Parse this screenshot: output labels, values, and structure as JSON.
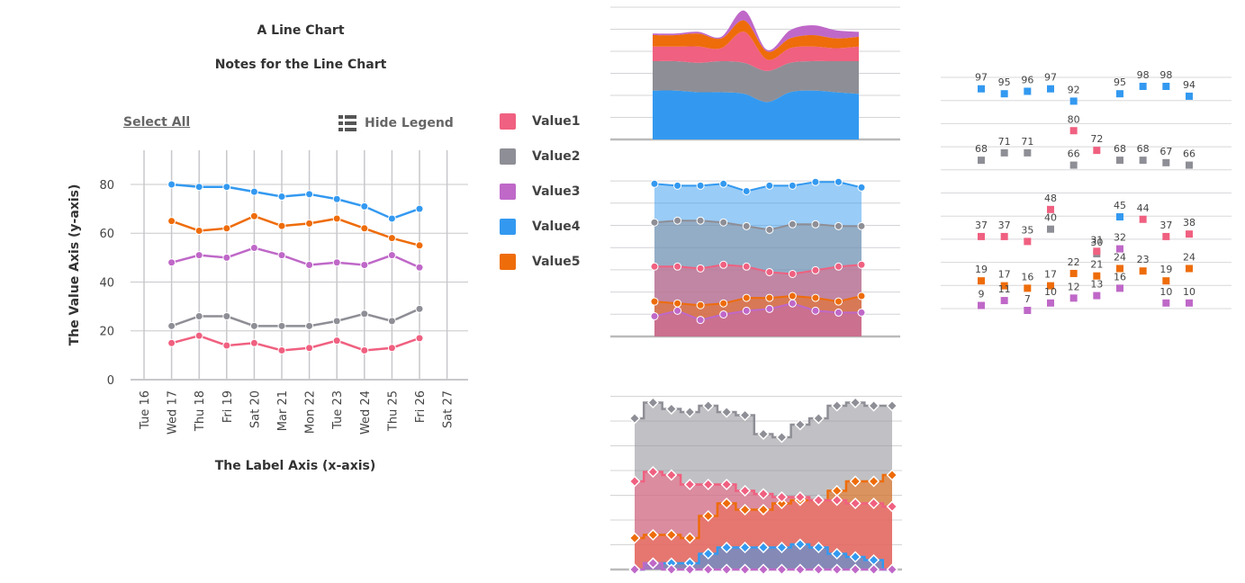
{
  "colors": {
    "Value1": "#f06080",
    "Value2": "#8e8e96",
    "Value3": "#bf68c8",
    "Value4": "#3399f0",
    "Value5": "#ee6c0a"
  },
  "controls": {
    "select_all": "Select All",
    "hide_legend": "Hide Legend",
    "hide_legend_icon": "list-icon"
  },
  "legend": [
    "Value1",
    "Value2",
    "Value3",
    "Value4",
    "Value5"
  ],
  "chart_data": [
    {
      "type": "line",
      "title": "A Line Chart",
      "subtitle": "Notes for the Line Chart",
      "xlabel": "The Label Axis (x-axis)",
      "ylabel": "The Value Axis (y-axis)",
      "categories": [
        "Tue 16",
        "Wed 17",
        "Thu 18",
        "Fri 19",
        "Sat 20",
        "Mar 21",
        "Mon 22",
        "Tue 23",
        "Wed 24",
        "Thu 25",
        "Fri 26",
        "Sat 27"
      ],
      "yticks": [
        0,
        20,
        40,
        60,
        80
      ],
      "ylim": [
        0,
        94
      ],
      "grid": true,
      "legend_position": "right",
      "series": [
        {
          "name": "Value1",
          "values": [
            null,
            15,
            18,
            14,
            15,
            12,
            13,
            16,
            12,
            13,
            17,
            null
          ]
        },
        {
          "name": "Value2",
          "values": [
            null,
            22,
            26,
            26,
            22,
            22,
            22,
            24,
            27,
            24,
            29,
            null
          ]
        },
        {
          "name": "Value3",
          "values": [
            null,
            48,
            51,
            50,
            54,
            51,
            47,
            48,
            47,
            51,
            46,
            null
          ]
        },
        {
          "name": "Value4",
          "values": [
            null,
            80,
            79,
            79,
            77,
            75,
            76,
            74,
            71,
            66,
            70,
            null
          ]
        },
        {
          "name": "Value5",
          "values": [
            null,
            65,
            61,
            62,
            67,
            63,
            64,
            66,
            62,
            58,
            55,
            null
          ]
        }
      ]
    },
    {
      "type": "area",
      "stacked": true,
      "smooth": true,
      "grid": true,
      "series": [
        {
          "name": "Value4",
          "values": [
            30,
            30,
            29,
            29,
            28,
            23,
            29,
            30,
            29,
            28
          ]
        },
        {
          "name": "Value2",
          "values": [
            18,
            18,
            18,
            19,
            19,
            19,
            18,
            18,
            19,
            20
          ]
        },
        {
          "name": "Value1",
          "values": [
            9,
            9,
            10,
            8,
            19,
            7,
            9,
            9,
            8,
            9
          ]
        },
        {
          "name": "Value5",
          "values": [
            7,
            7,
            8,
            6,
            7,
            5,
            6,
            7,
            6,
            6
          ]
        },
        {
          "name": "Value3",
          "values": [
            1,
            1,
            1,
            1,
            6,
            1,
            5,
            6,
            5,
            3
          ]
        }
      ]
    },
    {
      "type": "area",
      "overlapping": true,
      "grid": true,
      "series": [
        {
          "name": "Value4",
          "values": [
            83,
            82,
            82,
            83,
            79,
            82,
            82,
            84,
            84,
            81
          ]
        },
        {
          "name": "Value2",
          "values": [
            62,
            63,
            63,
            62,
            60,
            58,
            61,
            61,
            60,
            60
          ]
        },
        {
          "name": "Value1",
          "values": [
            38,
            38,
            37,
            39,
            38,
            35,
            34,
            36,
            38,
            39
          ]
        },
        {
          "name": "Value5",
          "values": [
            19,
            18,
            17,
            18,
            21,
            21,
            22,
            21,
            19,
            22
          ]
        },
        {
          "name": "Value3",
          "values": [
            11,
            14,
            9,
            12,
            14,
            15,
            18,
            14,
            13,
            13
          ]
        }
      ]
    },
    {
      "type": "area",
      "step": true,
      "overlapping": true,
      "markers": "diamond",
      "grid": true,
      "series": [
        {
          "name": "Value2",
          "values": [
            48,
            53,
            51,
            50,
            52,
            50,
            49,
            43,
            42,
            46,
            48,
            52,
            53,
            52,
            52
          ]
        },
        {
          "name": "Value5",
          "values": [
            10,
            11,
            11,
            10,
            17,
            21,
            19,
            19,
            21,
            22,
            22,
            25,
            28,
            28,
            30
          ]
        },
        {
          "name": "Value1",
          "values": [
            28,
            31,
            30,
            27,
            27,
            27,
            25,
            24,
            23,
            23,
            22,
            22,
            21,
            21,
            20
          ]
        },
        {
          "name": "Value4",
          "values": [
            0,
            2,
            2,
            2,
            5,
            7,
            7,
            7,
            7,
            8,
            7,
            5,
            4,
            3,
            0
          ]
        },
        {
          "name": "Value3",
          "values": [
            0,
            2,
            0,
            0,
            0,
            0,
            0,
            0,
            0,
            0,
            0,
            0,
            0,
            0,
            0
          ]
        }
      ]
    },
    {
      "type": "scatter",
      "labels": true,
      "grid": true,
      "series": [
        {
          "name": "Value4",
          "values": [
            97,
            95,
            96,
            97,
            92,
            null,
            95,
            98,
            98,
            94
          ]
        },
        {
          "name": "Value1",
          "values": [
            null,
            null,
            null,
            null,
            80,
            72,
            null,
            null,
            null,
            null
          ]
        },
        {
          "name": "Value2",
          "values": [
            68,
            71,
            71,
            null,
            66,
            null,
            68,
            68,
            67,
            66
          ]
        },
        {
          "name": "Value1",
          "values": [
            37,
            37,
            35,
            48,
            null,
            null,
            null,
            44,
            37,
            38
          ]
        },
        {
          "name": "Value4",
          "values": [
            null,
            null,
            null,
            null,
            null,
            null,
            45,
            null,
            null,
            null
          ]
        },
        {
          "name": "Value2",
          "values": [
            null,
            null,
            null,
            40,
            null,
            30,
            null,
            null,
            null,
            null
          ]
        },
        {
          "name": "Value1",
          "values": [
            null,
            null,
            null,
            null,
            null,
            31,
            null,
            null,
            null,
            null
          ]
        },
        {
          "name": "Value3",
          "values": [
            null,
            null,
            null,
            null,
            null,
            null,
            32,
            null,
            null,
            null
          ]
        },
        {
          "name": "Value5",
          "values": [
            19,
            17,
            16,
            17,
            22,
            21,
            24,
            23,
            19,
            24
          ]
        },
        {
          "name": "Value3",
          "values": [
            9,
            11,
            7,
            10,
            12,
            13,
            16,
            null,
            10,
            10
          ]
        }
      ]
    }
  ]
}
